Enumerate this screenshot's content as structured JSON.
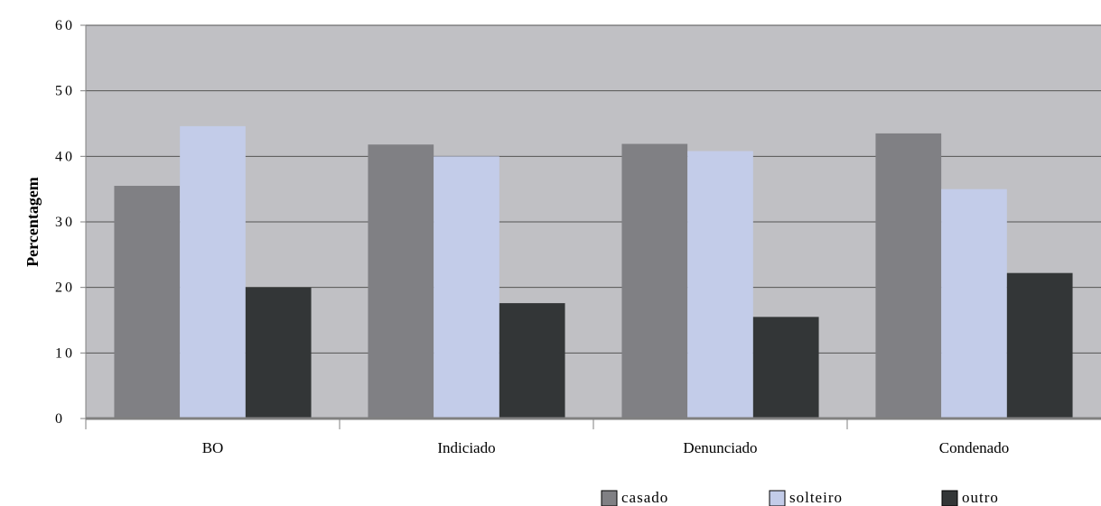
{
  "chart_data": {
    "type": "bar",
    "title": "",
    "xlabel": "",
    "ylabel": "Percentagem",
    "ylim": [
      0,
      60
    ],
    "yticks": [
      0,
      10,
      20,
      30,
      40,
      50,
      60
    ],
    "ytick_labels": [
      "0",
      "10",
      "20",
      "30",
      "40",
      "50",
      "60"
    ],
    "grid": true,
    "legend_position": "bottom-right",
    "categories": [
      "BO",
      "Indiciado",
      "Denunciado",
      "Condenado"
    ],
    "series": [
      {
        "name": "casado",
        "color": "#808084",
        "values": [
          35.5,
          41.8,
          41.9,
          43.5
        ]
      },
      {
        "name": "solteiro",
        "color": "#c3cce9",
        "values": [
          44.6,
          40.0,
          40.8,
          35.0
        ]
      },
      {
        "name": "outro",
        "color": "#333637",
        "values": [
          20.0,
          17.6,
          15.5,
          22.2
        ]
      }
    ],
    "plot_background": "#c0c0c4",
    "grid_color": "#555555"
  }
}
